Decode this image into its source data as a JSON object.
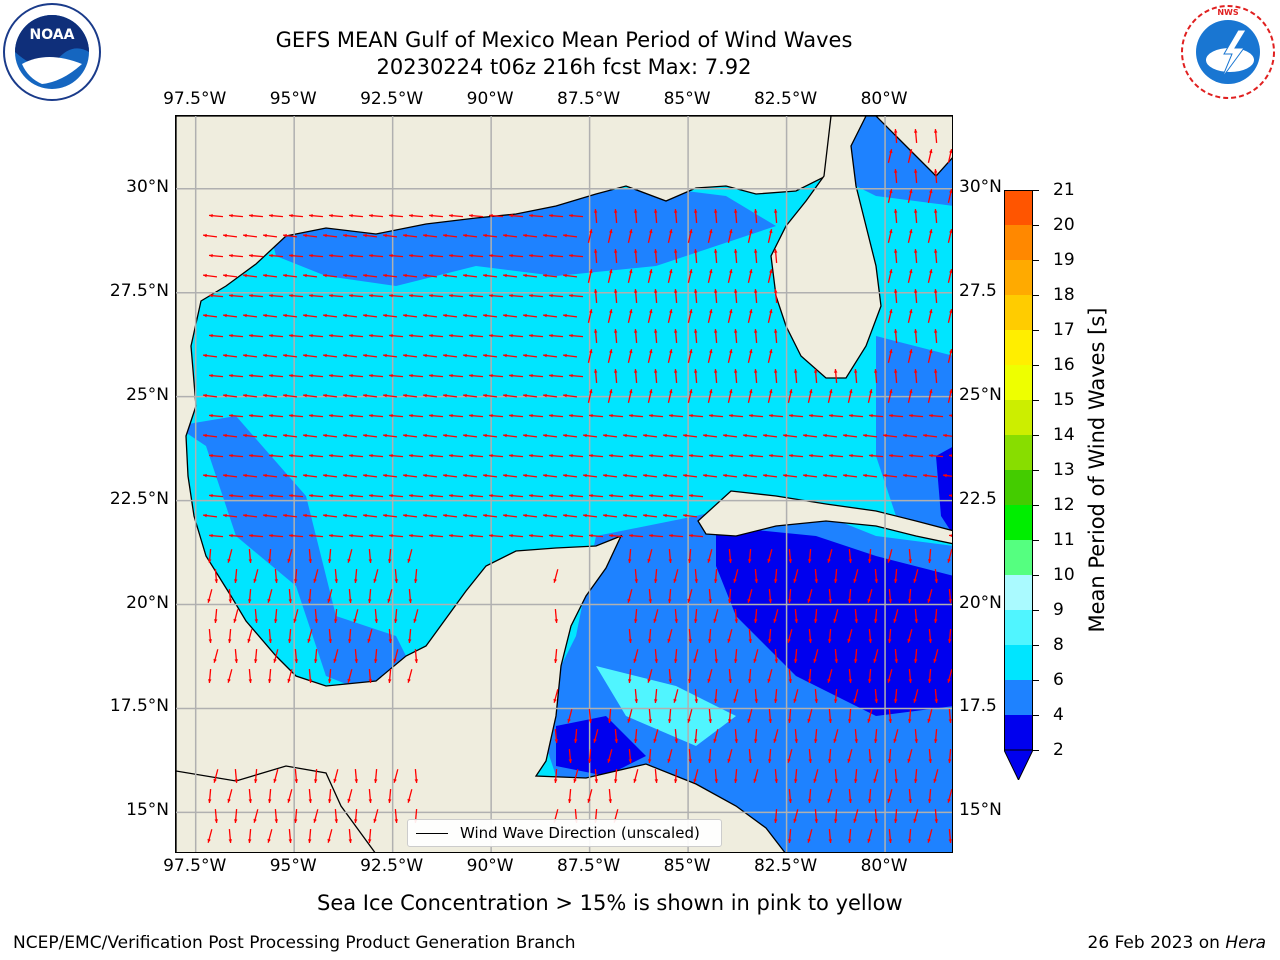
{
  "header": {
    "title_line1": "GEFS MEAN Gulf of Mexico Mean Period of Wind Waves",
    "title_line2": "20230224 t06z 216h fcst   Max: 7.92"
  },
  "logos": {
    "left_text": "NOAA",
    "left_ring": "NATIONAL OCEANIC AND ATMOSPHERIC ADMINISTRATION · U.S. DEPARTMENT OF COMMERCE",
    "right_ring": "NATIONAL WEATHER SERVICE"
  },
  "axes": {
    "lon_ticks": [
      "97.5°W",
      "95°W",
      "92.5°W",
      "90°W",
      "87.5°W",
      "85°W",
      "82.5°W",
      "80°W"
    ],
    "lat_ticks_left": [
      "30°N",
      "27.5°N",
      "25°N",
      "22.5°N",
      "20°N",
      "17.5°N",
      "15°N"
    ],
    "lat_ticks_right": [
      "30°N",
      "27.5",
      "25°N",
      "22.5",
      "20°N",
      "17.5",
      "15°N"
    ]
  },
  "map": {
    "lon_range": [
      -98,
      -78.25
    ],
    "lat_range": [
      14,
      31.75
    ],
    "legend_label": "Wind Wave Direction (unscaled)",
    "colors": {
      "land": "#efedde",
      "coast": "#000000",
      "grid": "#b0b0b0",
      "arrow": "#ff0000"
    }
  },
  "colorbar": {
    "label": "Mean Period of Wind Waves [s]",
    "tick_labels": [
      "21",
      "20",
      "19",
      "18",
      "17",
      "16",
      "15",
      "14",
      "13",
      "12",
      "11",
      "10",
      "9",
      "8",
      "6",
      "4",
      "2"
    ],
    "levels": [
      2,
      4,
      6,
      8,
      9,
      10,
      11,
      12,
      13,
      14,
      15,
      16,
      17,
      18,
      19,
      20,
      21
    ],
    "colors": [
      "#0000ee",
      "#1e82ff",
      "#00e5ff",
      "#50f5ff",
      "#aafaff",
      "#55ff80",
      "#00ee00",
      "#44cc00",
      "#88dd00",
      "#ccee00",
      "#eeff00",
      "#ffee00",
      "#ffcc00",
      "#ffaa00",
      "#ff8800",
      "#ff5500",
      "#ff2200",
      "#ff0000"
    ]
  },
  "footer": {
    "caption": "Sea Ice Concentration > 15% is shown in pink to yellow",
    "left": "NCEP/EMC/Verification Post Processing Product Generation Branch",
    "right_date": "26 Feb 2023 on ",
    "right_host": "Hera"
  }
}
